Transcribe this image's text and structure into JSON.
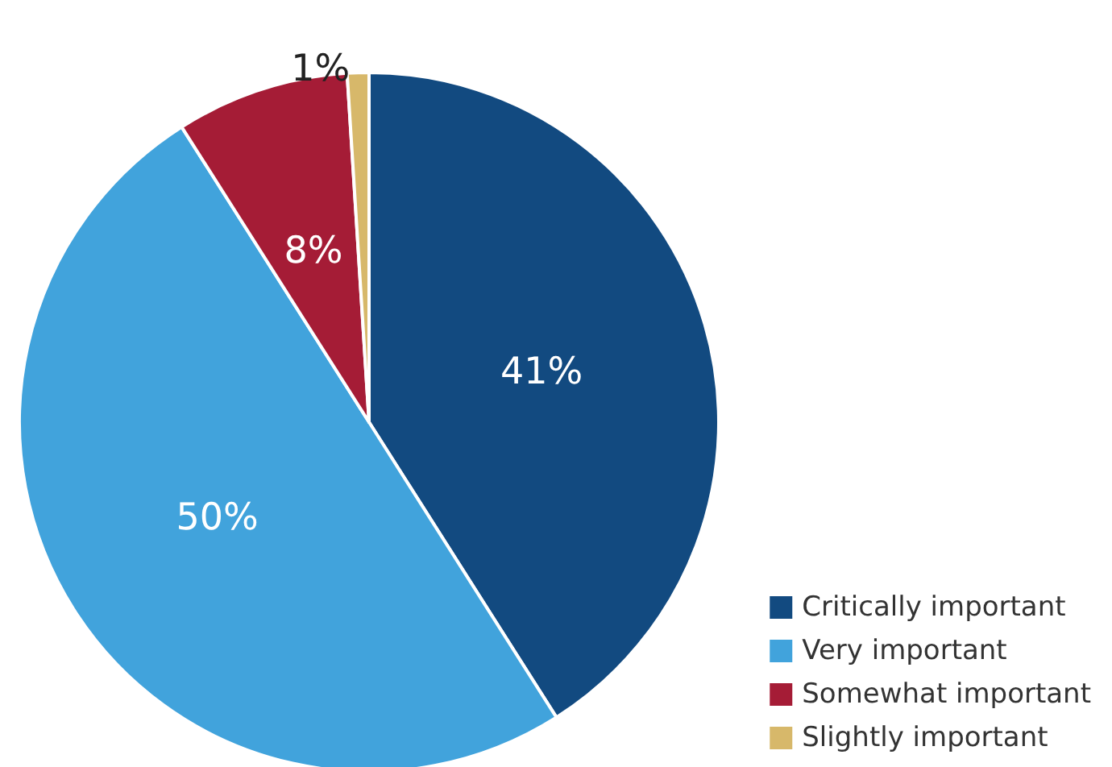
{
  "chart_data": {
    "type": "pie",
    "categories": [
      "Critically important",
      "Very important",
      "Somewhat important",
      "Slightly important"
    ],
    "values": [
      41,
      50,
      8,
      1
    ],
    "colors": [
      "#124a80",
      "#41a3dc",
      "#a51c36",
      "#d7b86a"
    ],
    "value_labels": [
      "41%",
      "50%",
      "8%",
      "1%"
    ],
    "legend": "bottom right"
  }
}
